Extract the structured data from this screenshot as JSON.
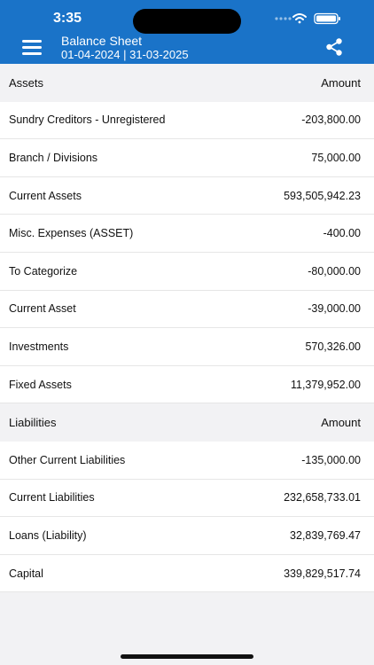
{
  "status_bar": {
    "time": "3:35"
  },
  "header": {
    "title": "Balance Sheet",
    "subtitle": "01-04-2024 | 31-03-2025",
    "menu_icon": "hamburger-menu-icon",
    "share_icon": "share-icon",
    "color": "#1a73c8"
  },
  "assets": {
    "heading": "Assets",
    "amount_heading": "Amount",
    "rows": [
      {
        "label": "Sundry Creditors - Unregistered",
        "amount": "-203,800.00"
      },
      {
        "label": "Branch / Divisions",
        "amount": "75,000.00"
      },
      {
        "label": "Current Assets",
        "amount": "593,505,942.23"
      },
      {
        "label": "Misc. Expenses (ASSET)",
        "amount": "-400.00"
      },
      {
        "label": "To Categorize",
        "amount": "-80,000.00"
      },
      {
        "label": "Current Asset",
        "amount": "-39,000.00"
      },
      {
        "label": "Investments",
        "amount": "570,326.00"
      },
      {
        "label": "Fixed Assets",
        "amount": "11,379,952.00"
      }
    ]
  },
  "liabilities": {
    "heading": "Liabilities",
    "amount_heading": "Amount",
    "rows": [
      {
        "label": "Other Current Liabilities",
        "amount": "-135,000.00"
      },
      {
        "label": "Current Liabilities",
        "amount": "232,658,733.01"
      },
      {
        "label": "Loans (Liability)",
        "amount": "32,839,769.47"
      },
      {
        "label": "Capital",
        "amount": "339,829,517.74"
      }
    ]
  }
}
